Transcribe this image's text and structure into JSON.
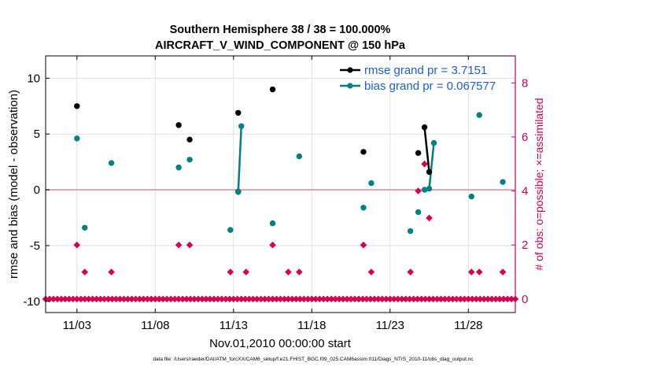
{
  "chart_data": {
    "type": "scatter",
    "title_line1": "Southern Hemisphere 38 / 38 = 100.000%",
    "title_line2": "AIRCRAFT_V_WIND_COMPONENT @ 150 hPa",
    "xlabel": "Nov.01,2010 00:00:00 start",
    "ylabel_left": "rmse and bias (model - observation)",
    "ylabel_right": "# of obs: o=possible; ×=assimilated",
    "xlim": [
      1.0,
      31.0
    ],
    "ylim_left": [
      -11,
      12
    ],
    "ylim_right": [
      -0.5,
      9
    ],
    "x_ticks": [
      {
        "value": 3,
        "label": "11/03"
      },
      {
        "value": 8,
        "label": "11/08"
      },
      {
        "value": 13,
        "label": "11/13"
      },
      {
        "value": 18,
        "label": "11/18"
      },
      {
        "value": 23,
        "label": "11/23"
      },
      {
        "value": 28,
        "label": "11/28"
      }
    ],
    "y_ticks_left": [
      {
        "value": 10,
        "label": "10"
      },
      {
        "value": 5,
        "label": "5"
      },
      {
        "value": 0,
        "label": "0"
      },
      {
        "value": -5,
        "label": "-5"
      },
      {
        "value": -10,
        "label": "-10"
      }
    ],
    "y_ticks_right": [
      {
        "value": 8,
        "label": "8"
      },
      {
        "value": 6,
        "label": "6"
      },
      {
        "value": 4,
        "label": "4"
      },
      {
        "value": 2,
        "label": "2"
      },
      {
        "value": 0,
        "label": "0"
      }
    ],
    "legend": [
      {
        "label": "rmse grand pr = 3.7151",
        "color": "#000000"
      },
      {
        "label": "bias grand pr = 0.067577",
        "color": "#008080"
      }
    ],
    "rmse": [
      {
        "x": 3.0,
        "y": 7.5
      },
      {
        "x": 9.5,
        "y": 5.8
      },
      {
        "x": 10.2,
        "y": 4.5
      },
      {
        "x": 13.3,
        "y": 6.9
      },
      {
        "x": 15.5,
        "y": 9.0
      },
      {
        "x": 21.3,
        "y": 3.4
      },
      {
        "x": 24.8,
        "y": 3.3
      },
      {
        "x": 25.2,
        "y": 5.6
      },
      {
        "x": 25.5,
        "y": 1.6
      }
    ],
    "rmse_segments": [
      [
        25.2,
        5.6,
        25.5,
        1.6
      ]
    ],
    "bias": [
      {
        "x": 3.0,
        "y": 4.6
      },
      {
        "x": 3.5,
        "y": -3.4
      },
      {
        "x": 5.2,
        "y": 2.4
      },
      {
        "x": 9.5,
        "y": 2.0
      },
      {
        "x": 10.2,
        "y": 2.7
      },
      {
        "x": 12.8,
        "y": -3.6
      },
      {
        "x": 13.3,
        "y": -0.2
      },
      {
        "x": 13.5,
        "y": 5.7
      },
      {
        "x": 15.5,
        "y": -3.0
      },
      {
        "x": 17.2,
        "y": 3.0
      },
      {
        "x": 21.3,
        "y": -1.6
      },
      {
        "x": 21.8,
        "y": 0.6
      },
      {
        "x": 24.3,
        "y": -3.7
      },
      {
        "x": 24.8,
        "y": -2.0
      },
      {
        "x": 25.2,
        "y": 0.0
      },
      {
        "x": 25.5,
        "y": 0.1
      },
      {
        "x": 25.8,
        "y": 4.2
      },
      {
        "x": 28.2,
        "y": -0.6
      },
      {
        "x": 28.7,
        "y": 6.7
      },
      {
        "x": 30.2,
        "y": 0.7
      }
    ],
    "bias_segments": [
      [
        13.3,
        -0.2,
        13.5,
        5.7
      ],
      [
        25.5,
        0.1,
        25.8,
        4.2
      ]
    ],
    "obs_possible": [
      {
        "x": 3.0,
        "y": 2
      },
      {
        "x": 3.5,
        "y": 1
      },
      {
        "x": 5.2,
        "y": 1
      },
      {
        "x": 9.5,
        "y": 2
      },
      {
        "x": 10.2,
        "y": 2
      },
      {
        "x": 12.8,
        "y": 1
      },
      {
        "x": 13.3,
        "y": 4
      },
      {
        "x": 13.8,
        "y": 1
      },
      {
        "x": 15.5,
        "y": 2
      },
      {
        "x": 16.5,
        "y": 1
      },
      {
        "x": 17.2,
        "y": 1
      },
      {
        "x": 21.3,
        "y": 2
      },
      {
        "x": 21.8,
        "y": 1
      },
      {
        "x": 24.3,
        "y": 1
      },
      {
        "x": 24.8,
        "y": 4
      },
      {
        "x": 25.2,
        "y": 5
      },
      {
        "x": 25.5,
        "y": 3
      },
      {
        "x": 28.2,
        "y": 1
      },
      {
        "x": 28.7,
        "y": 1
      },
      {
        "x": 30.2,
        "y": 1
      }
    ],
    "obs_zero": {
      "from": 1.0,
      "to": 31.0,
      "step": 0.25,
      "y": 0
    },
    "zero_line": {
      "y": 0,
      "color": "#d4a5b5"
    },
    "footnote": "data file: /Users/raeder/DAI/ATM_forcXX/CAM6_setup/f.e21.FHIST_BGC.f09_025.CAM6assim.011/Diags_NTrS_2010-11/obs_diag_output.nc",
    "colors": {
      "rmse": "#000000",
      "bias": "#008080",
      "obs": "#d6004f",
      "grid": "#e2e2e2",
      "right_axis": "#cc0055",
      "legend_text": "#1a5fd6"
    }
  }
}
